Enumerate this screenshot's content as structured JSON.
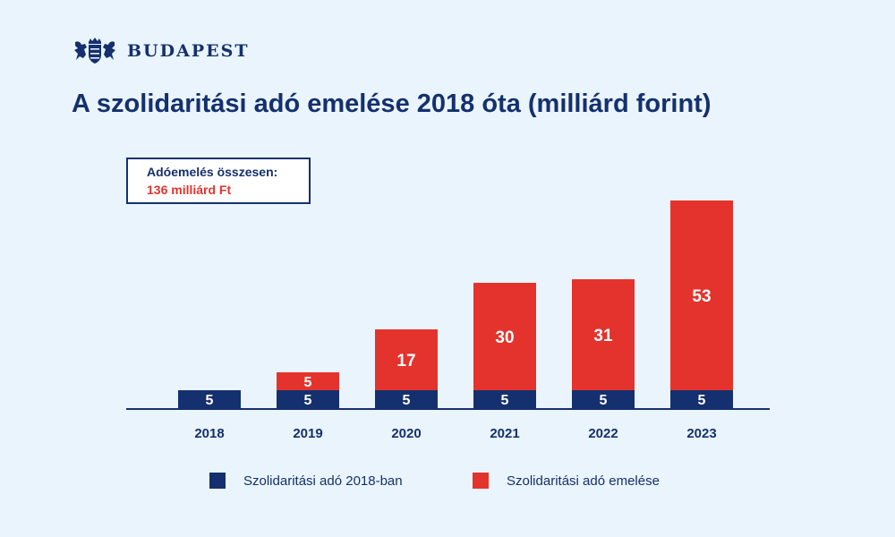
{
  "brand": {
    "name": "BUDAPEST"
  },
  "summary": {
    "label": "Adóemelés összesen:",
    "value": "136 milliárd Ft"
  },
  "colors": {
    "navy": "#14306e",
    "red": "#e4332c",
    "background": "#eaf4fc"
  },
  "chart_data": {
    "type": "bar",
    "stacked": true,
    "title": "A szolidaritási adó emelése 2018 óta (milliárd forint)",
    "categories": [
      "2018",
      "2019",
      "2020",
      "2021",
      "2022",
      "2023"
    ],
    "series": [
      {
        "name": "Szolidaritási adó 2018-ban",
        "color": "#14306e",
        "values": [
          5,
          5,
          5,
          5,
          5,
          5
        ]
      },
      {
        "name": "Szolidaritási adó emelése",
        "color": "#e4332c",
        "values": [
          0,
          5,
          17,
          30,
          31,
          53
        ]
      }
    ],
    "ylim": [
      0,
      58
    ],
    "grid": false,
    "legend_position": "bottom"
  }
}
